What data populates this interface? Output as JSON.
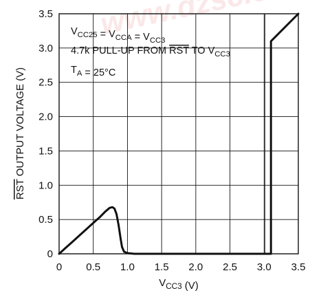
{
  "chart_data": {
    "type": "line",
    "xlabel": {
      "main": "V",
      "sub": "CC3",
      "suffix": " (V)"
    },
    "ylabel": {
      "over": "RST",
      "rest": " OUTPUT VOLTAGE (V)"
    },
    "xlim": [
      0,
      3.5
    ],
    "ylim": [
      0,
      3.5
    ],
    "grid": true,
    "x_ticks": [
      "0",
      "0.5",
      "1.0",
      "1.5",
      "2.0",
      "2.5",
      "3.0",
      "3.5"
    ],
    "y_ticks": [
      "0",
      "0.5",
      "1.0",
      "1.5",
      "2.0",
      "2.5",
      "3.0",
      "3.5"
    ],
    "annotations": [
      {
        "runs": [
          {
            "t": "V"
          },
          {
            "t": "CC25",
            "sub": true
          },
          {
            "t": " = V"
          },
          {
            "t": "CCA",
            "sub": true
          },
          {
            "t": " = V"
          },
          {
            "t": "CC3",
            "sub": true
          }
        ]
      },
      {
        "runs": [
          {
            "t": "4.7k PULL-UP FROM "
          },
          {
            "t": "RST",
            "over": true
          },
          {
            "t": " TO V"
          },
          {
            "t": "CC3",
            "sub": true
          }
        ]
      },
      {
        "runs": [
          {
            "t": "T"
          },
          {
            "t": "A",
            "sub": true
          },
          {
            "t": " = 25°C"
          }
        ]
      }
    ],
    "extra_vline_x": 3.01,
    "series": [
      {
        "x": [
          0,
          0.1,
          0.2,
          0.3,
          0.4,
          0.5,
          0.6,
          0.68,
          0.74,
          0.78,
          0.81,
          0.84,
          0.87,
          0.9,
          0.92,
          0.95,
          1.0,
          1.1,
          3.1,
          3.1,
          3.5
        ],
        "y": [
          0,
          0.09,
          0.18,
          0.27,
          0.36,
          0.45,
          0.54,
          0.62,
          0.67,
          0.68,
          0.66,
          0.58,
          0.42,
          0.22,
          0.1,
          0.03,
          0.01,
          0.0,
          0.0,
          3.1,
          3.5
        ]
      }
    ]
  },
  "watermark": "www.dzsc.com"
}
